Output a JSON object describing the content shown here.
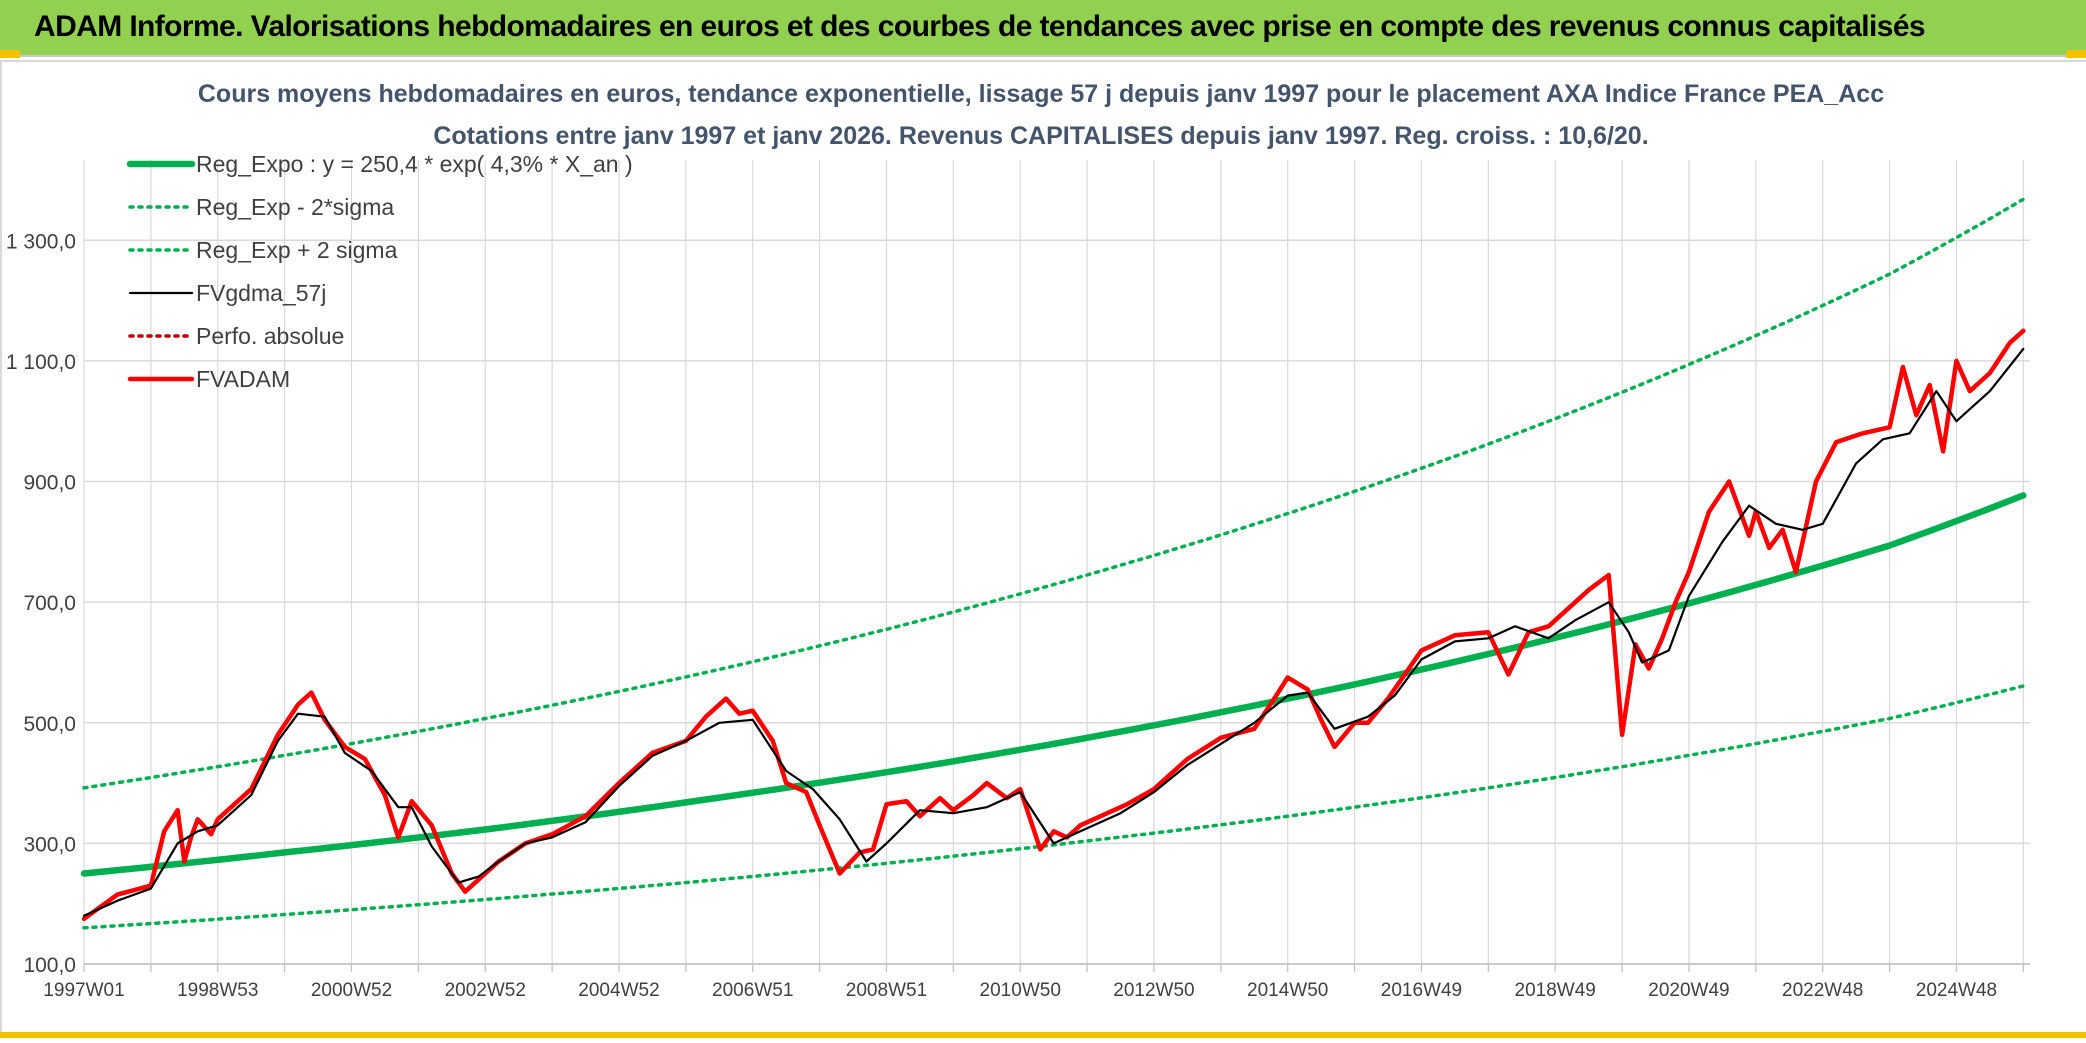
{
  "header": {
    "title": "ADAM Informe. Valorisations hebdomadaires en euros et des courbes de tendances avec prise en compte des revenus connus capitalisés"
  },
  "colors": {
    "banner": "#92d050",
    "trend": "#00b050",
    "smooth": "#000000",
    "price": "#ff0000",
    "perfo": "#c00000",
    "title_text": "#44546a",
    "grid": "#d9d9d9"
  },
  "chart_data": {
    "type": "line",
    "title": "Cours moyens hebdomadaires en euros, tendance exponentielle, lissage 57 j depuis janv 1997 pour le placement AXA Indice France PEA_Acc",
    "subtitle": "Cotations entre janv 1997 et janv 2026. Revenus CAPITALISES depuis janv 1997. Reg. croiss. : 10,6/20.",
    "xlabel": "",
    "ylabel": "",
    "xlim": [
      1997.0,
      2026.1
    ],
    "ylim": [
      100,
      1400
    ],
    "y_ticks": [
      "100,0",
      "300,0",
      "500,0",
      "700,0",
      "900,0",
      "1 100,0",
      "1 300,0"
    ],
    "x_ticks": [
      "1997W01",
      "1998W53",
      "2000W52",
      "2002W52",
      "2004W52",
      "2006W51",
      "2008W51",
      "2010W50",
      "2012W50",
      "2014W50",
      "2016W49",
      "2018W49",
      "2020W49",
      "2022W48",
      "2024W48"
    ],
    "legend_position": "top-left",
    "grid": true,
    "series": [
      {
        "name": "Reg_Expo : y = 250,4 * exp( 4,3% *  X_an )",
        "style": "solid-thick",
        "color": "#00b050",
        "x": [
          1997,
          2000,
          2003,
          2006,
          2009,
          2012,
          2015,
          2018,
          2021,
          2024,
          2026
        ],
        "values": [
          250,
          285,
          323,
          368,
          418,
          475,
          540,
          614,
          698,
          794,
          877
        ]
      },
      {
        "name": "Reg_Exp - 2*sigma",
        "style": "dotted",
        "color": "#00b050",
        "x": [
          1997,
          2000,
          2003,
          2006,
          2009,
          2012,
          2015,
          2018,
          2021,
          2024,
          2026
        ],
        "values": [
          160,
          182,
          207,
          235,
          267,
          304,
          345,
          392,
          446,
          507,
          561
        ]
      },
      {
        "name": "Reg_Exp + 2 sigma",
        "style": "dotted",
        "color": "#00b050",
        "x": [
          1997,
          2000,
          2003,
          2006,
          2009,
          2012,
          2015,
          2018,
          2021,
          2024,
          2026
        ],
        "values": [
          392,
          446,
          507,
          576,
          655,
          745,
          847,
          962,
          1094,
          1244,
          1368
        ]
      },
      {
        "name": "FVgdma_57j",
        "style": "solid",
        "color": "#000000",
        "x": [
          1997.0,
          1997.5,
          1998.0,
          1998.4,
          1998.7,
          1999.0,
          1999.5,
          1999.9,
          2000.2,
          2000.6,
          2000.9,
          2001.3,
          2001.7,
          2001.9,
          2002.2,
          2002.6,
          2002.9,
          2003.2,
          2003.6,
          2004.0,
          2004.5,
          2005.0,
          2005.5,
          2006.0,
          2006.5,
          2007.0,
          2007.5,
          2007.9,
          2008.3,
          2008.7,
          2009.0,
          2009.5,
          2010.0,
          2010.5,
          2011.0,
          2011.5,
          2011.9,
          2012.5,
          2013.0,
          2013.5,
          2014.0,
          2014.5,
          2015.0,
          2015.3,
          2015.7,
          2016.2,
          2016.6,
          2017.0,
          2017.5,
          2018.0,
          2018.4,
          2018.9,
          2019.3,
          2019.8,
          2020.1,
          2020.3,
          2020.7,
          2021.0,
          2021.5,
          2021.9,
          2022.3,
          2022.7,
          2023.0,
          2023.5,
          2023.9,
          2024.3,
          2024.7,
          2025.0,
          2025.5,
          2026.0
        ],
        "values": [
          180,
          205,
          225,
          300,
          320,
          330,
          380,
          470,
          515,
          510,
          450,
          420,
          360,
          360,
          295,
          235,
          245,
          270,
          300,
          310,
          335,
          395,
          445,
          470,
          500,
          505,
          420,
          390,
          340,
          270,
          300,
          355,
          350,
          360,
          385,
          300,
          320,
          350,
          385,
          430,
          465,
          500,
          545,
          550,
          490,
          510,
          545,
          605,
          635,
          640,
          660,
          640,
          670,
          700,
          650,
          600,
          620,
          710,
          800,
          860,
          830,
          820,
          830,
          930,
          970,
          980,
          1050,
          1000,
          1050,
          1120
        ]
      },
      {
        "name": "Perfo. absolue",
        "style": "dotted",
        "color": "#c00000",
        "x": [],
        "values": []
      },
      {
        "name": "FVADAM",
        "style": "solid-thick",
        "color": "#ff0000",
        "x": [
          1997.0,
          1997.5,
          1998.0,
          1998.2,
          1998.4,
          1998.5,
          1998.6,
          1998.7,
          1998.9,
          1999.0,
          1999.5,
          1999.9,
          2000.2,
          2000.4,
          2000.6,
          2000.9,
          2001.2,
          2001.5,
          2001.7,
          2001.9,
          2002.2,
          2002.5,
          2002.7,
          2002.9,
          2003.2,
          2003.6,
          2004.0,
          2004.5,
          2005.0,
          2005.5,
          2006.0,
          2006.3,
          2006.6,
          2006.8,
          2007.0,
          2007.3,
          2007.5,
          2007.8,
          2008.0,
          2008.3,
          2008.6,
          2008.8,
          2009.0,
          2009.3,
          2009.5,
          2009.8,
          2010.0,
          2010.3,
          2010.5,
          2010.8,
          2011.0,
          2011.3,
          2011.5,
          2011.7,
          2011.9,
          2012.3,
          2012.6,
          2013.0,
          2013.5,
          2014.0,
          2014.5,
          2014.8,
          2015.0,
          2015.3,
          2015.5,
          2015.7,
          2016.0,
          2016.2,
          2016.5,
          2017.0,
          2017.5,
          2018.0,
          2018.3,
          2018.6,
          2018.9,
          2019.2,
          2019.5,
          2019.8,
          2020.0,
          2020.2,
          2020.4,
          2020.6,
          2020.8,
          2021.0,
          2021.3,
          2021.6,
          2021.9,
          2022.0,
          2022.2,
          2022.4,
          2022.6,
          2022.8,
          2022.9,
          2023.2,
          2023.6,
          2024.0,
          2024.2,
          2024.4,
          2024.6,
          2024.8,
          2025.0,
          2025.2,
          2025.5,
          2025.8,
          2026.0
        ],
        "values": [
          175,
          215,
          230,
          320,
          355,
          270,
          310,
          340,
          315,
          340,
          390,
          480,
          530,
          550,
          505,
          460,
          440,
          380,
          310,
          370,
          330,
          250,
          220,
          240,
          270,
          300,
          315,
          345,
          400,
          450,
          470,
          510,
          540,
          515,
          520,
          470,
          400,
          385,
          330,
          250,
          285,
          290,
          365,
          370,
          345,
          375,
          355,
          380,
          400,
          375,
          390,
          290,
          320,
          310,
          330,
          350,
          365,
          390,
          440,
          475,
          490,
          540,
          575,
          555,
          505,
          460,
          500,
          500,
          540,
          620,
          645,
          650,
          580,
          650,
          660,
          690,
          720,
          745,
          480,
          630,
          590,
          640,
          700,
          750,
          850,
          900,
          810,
          850,
          790,
          820,
          750,
          850,
          900,
          965,
          980,
          990,
          1090,
          1010,
          1060,
          950,
          1100,
          1050,
          1080,
          1130,
          1150
        ]
      }
    ]
  }
}
